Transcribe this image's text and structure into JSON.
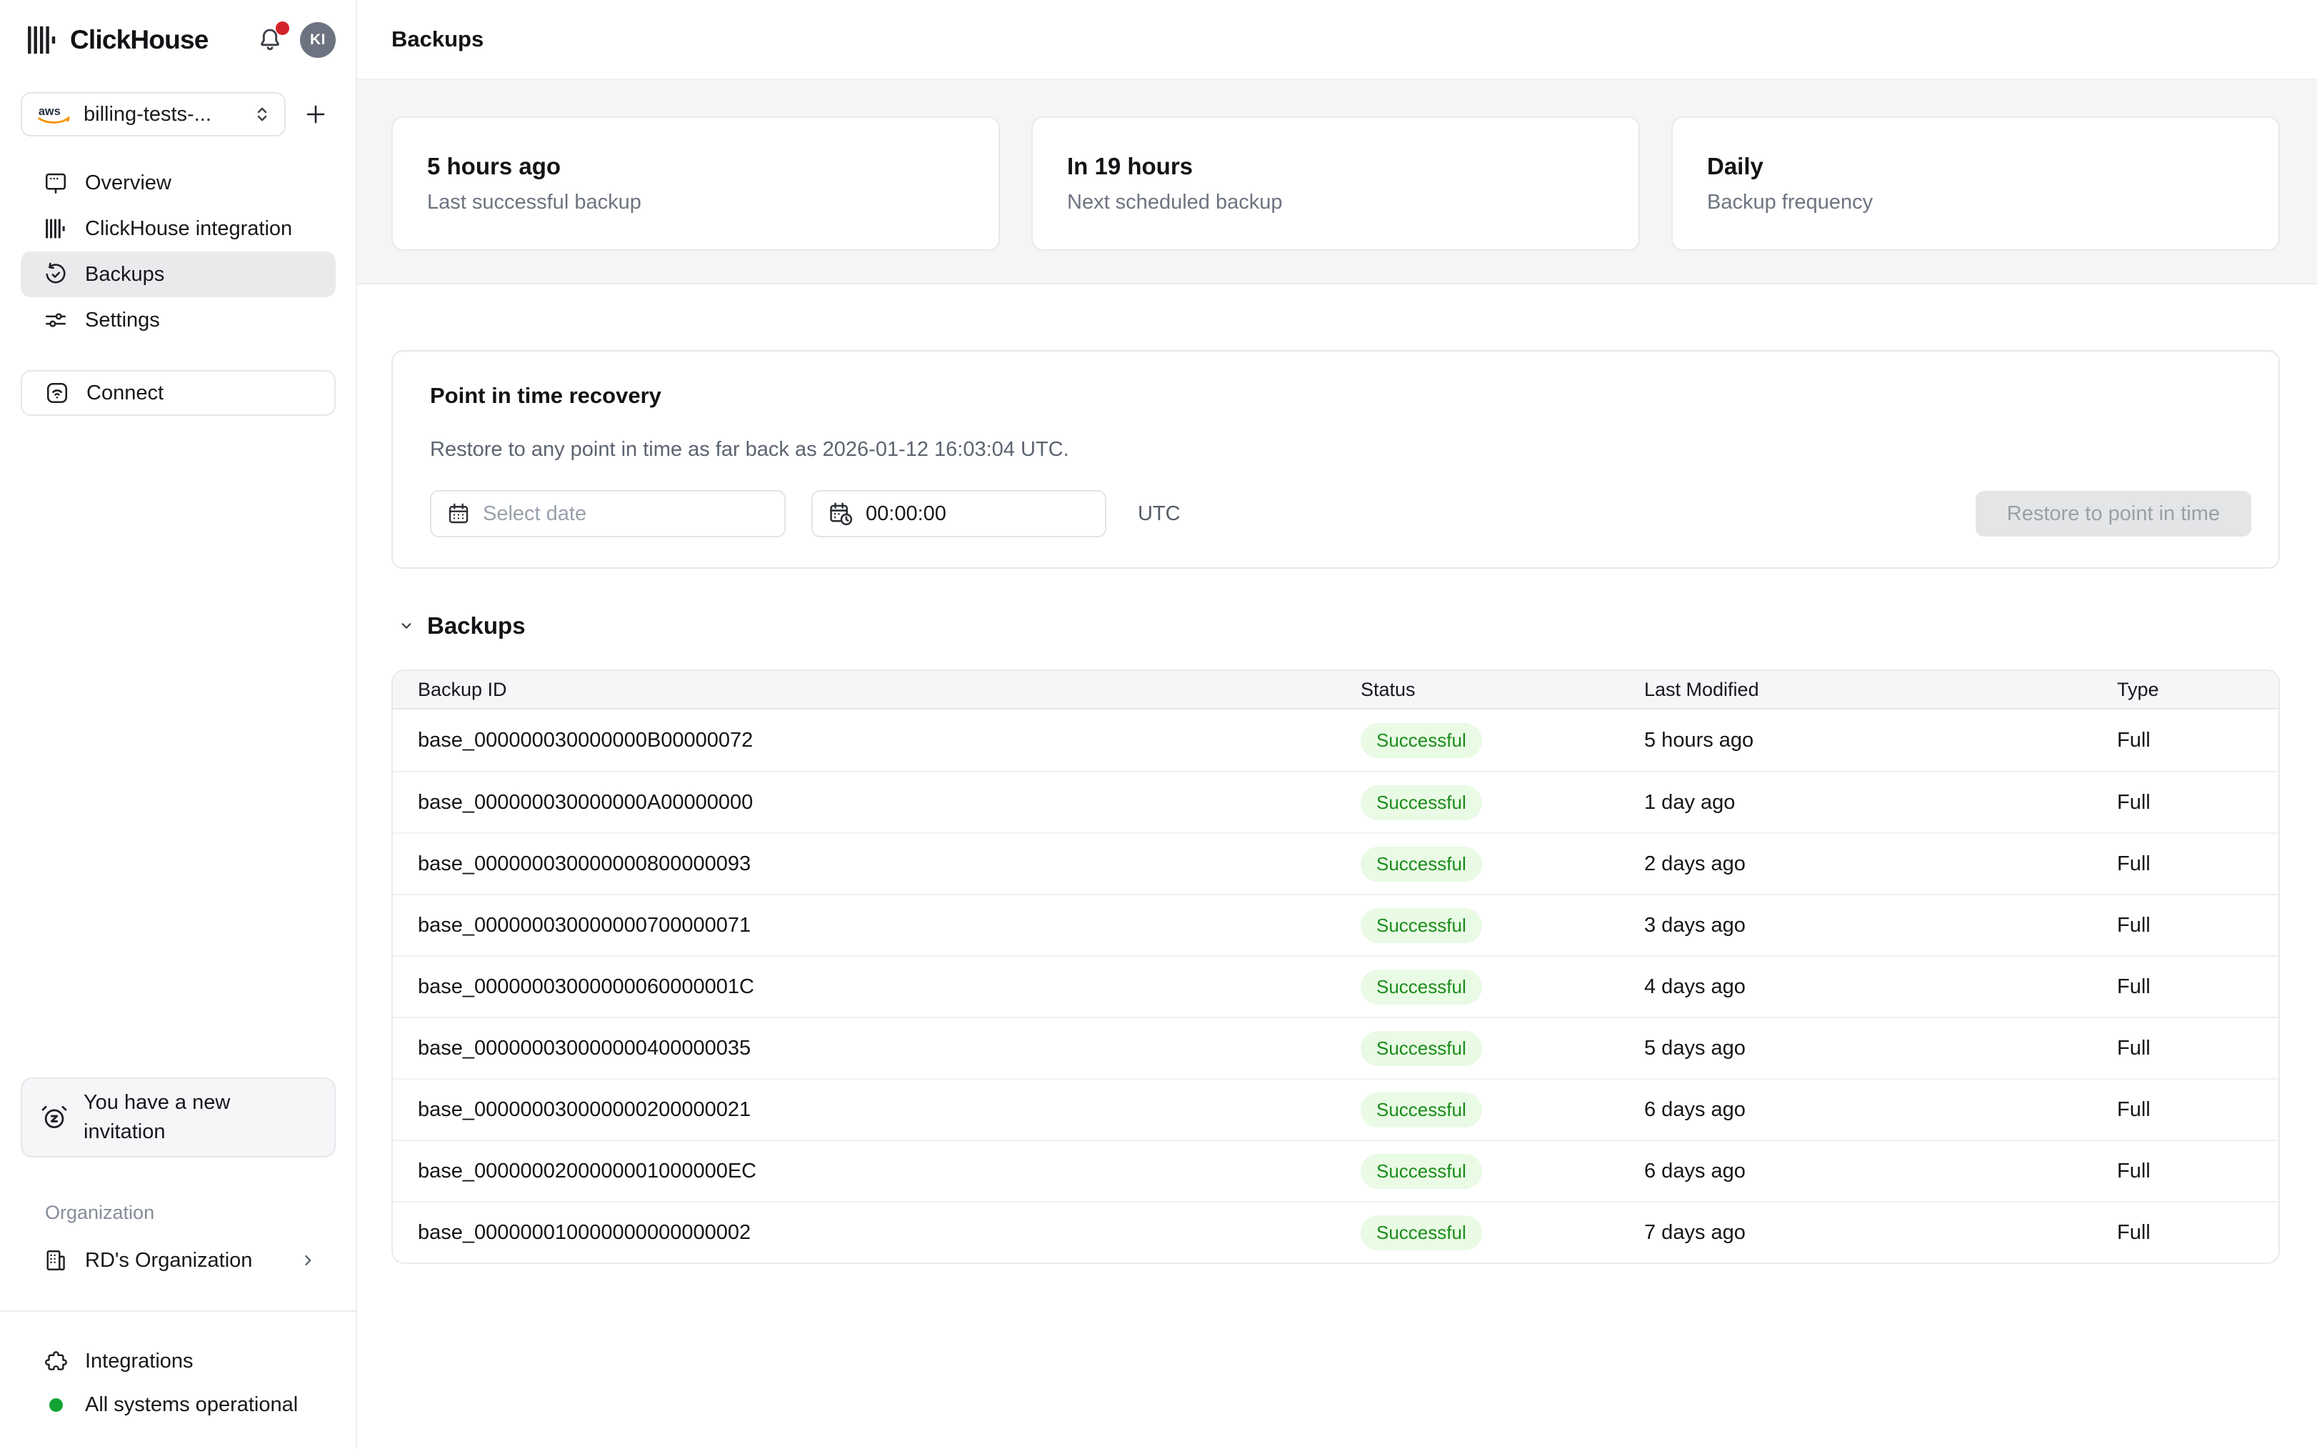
{
  "app": {
    "brand": "ClickHouse",
    "avatar_initials": "KI"
  },
  "colors": {
    "badge_green_text": "#1b8c1b",
    "badge_green_bg": "#e9fae5",
    "status_dot_green": "#12a233",
    "notification_red": "#d3222a",
    "aws_orange": "#f79400",
    "page_band_gray": "#f4f5f7"
  },
  "icons": {
    "brand_mark": "clickhouse-bars",
    "notifications": "bell",
    "service_provider": "aws-logo",
    "selector_caret": "up-down-chevrons",
    "add_service": "plus",
    "nav_overview": "presentation-screen",
    "nav_integration": "clickhouse-bars",
    "nav_backups": "history-restore",
    "nav_settings": "sliders",
    "connect": "wifi-square",
    "invitation": "alarm-snooze",
    "organization": "building",
    "organization_chevron": "chevron-right",
    "integrations": "puzzle-piece",
    "status": "green-dot",
    "section_chevron": "chevron-down",
    "date_input": "calendar",
    "time_input": "calendar-clock"
  },
  "sidebar": {
    "service_selector": {
      "label": "billing-tests-...",
      "provider": "aws"
    },
    "nav": [
      {
        "label": "Overview"
      },
      {
        "label": "ClickHouse integration"
      },
      {
        "label": "Backups"
      },
      {
        "label": "Settings"
      }
    ],
    "connect_label": "Connect",
    "invitation_text": "You have a new invitation",
    "organization_label": "Organization",
    "organization_name": "RD's Organization",
    "integrations_label": "Integrations",
    "status_label": "All systems operational"
  },
  "header": {
    "title": "Backups"
  },
  "summary_cards": [
    {
      "title": "5 hours ago",
      "subtitle": "Last successful backup"
    },
    {
      "title": "In 19 hours",
      "subtitle": "Next scheduled backup"
    },
    {
      "title": "Daily",
      "subtitle": "Backup frequency"
    }
  ],
  "pitr": {
    "title": "Point in time recovery",
    "description": "Restore to any point in time as far back as 2026-01-12 16:03:04 UTC.",
    "date_placeholder": "Select date",
    "time_value": "00:00:00",
    "timezone": "UTC",
    "button_label": "Restore to point in time"
  },
  "backups_section": {
    "title": "Backups",
    "columns": [
      "Backup ID",
      "Status",
      "Last Modified",
      "Type"
    ],
    "rows": [
      {
        "id": "base_000000030000000B00000072",
        "status": "Successful",
        "modified": "5 hours ago",
        "type": "Full"
      },
      {
        "id": "base_000000030000000A00000000",
        "status": "Successful",
        "modified": "1 day ago",
        "type": "Full"
      },
      {
        "id": "base_000000030000000800000093",
        "status": "Successful",
        "modified": "2 days ago",
        "type": "Full"
      },
      {
        "id": "base_000000030000000700000071",
        "status": "Successful",
        "modified": "3 days ago",
        "type": "Full"
      },
      {
        "id": "base_00000003000000060000001C",
        "status": "Successful",
        "modified": "4 days ago",
        "type": "Full"
      },
      {
        "id": "base_000000030000000400000035",
        "status": "Successful",
        "modified": "5 days ago",
        "type": "Full"
      },
      {
        "id": "base_000000030000000200000021",
        "status": "Successful",
        "modified": "6 days ago",
        "type": "Full"
      },
      {
        "id": "base_0000000200000001000000EC",
        "status": "Successful",
        "modified": "6 days ago",
        "type": "Full"
      },
      {
        "id": "base_000000010000000000000002",
        "status": "Successful",
        "modified": "7 days ago",
        "type": "Full"
      }
    ]
  }
}
